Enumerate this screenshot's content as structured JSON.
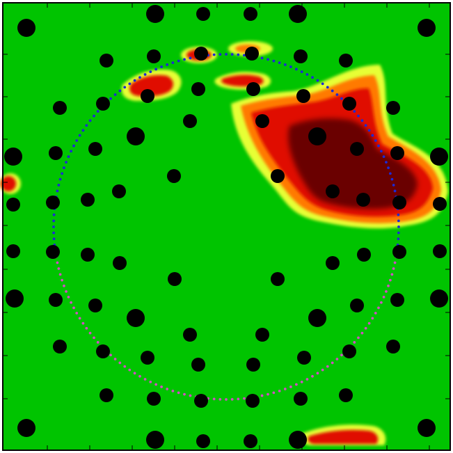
{
  "colors": {
    "field_green": "#00c400",
    "heat_yellow": "#e7ff36",
    "heat_orange": "#ff7a00",
    "heat_red": "#e01000",
    "heat_dark_red": "#6a0000",
    "circle_blue": "#1c2ad6",
    "circle_magenta": "#d04fc1",
    "marker_black": "#000000",
    "frame_black": "#000000"
  },
  "labels": {
    "scene_name": "heatmap-dot-pattern"
  }
}
